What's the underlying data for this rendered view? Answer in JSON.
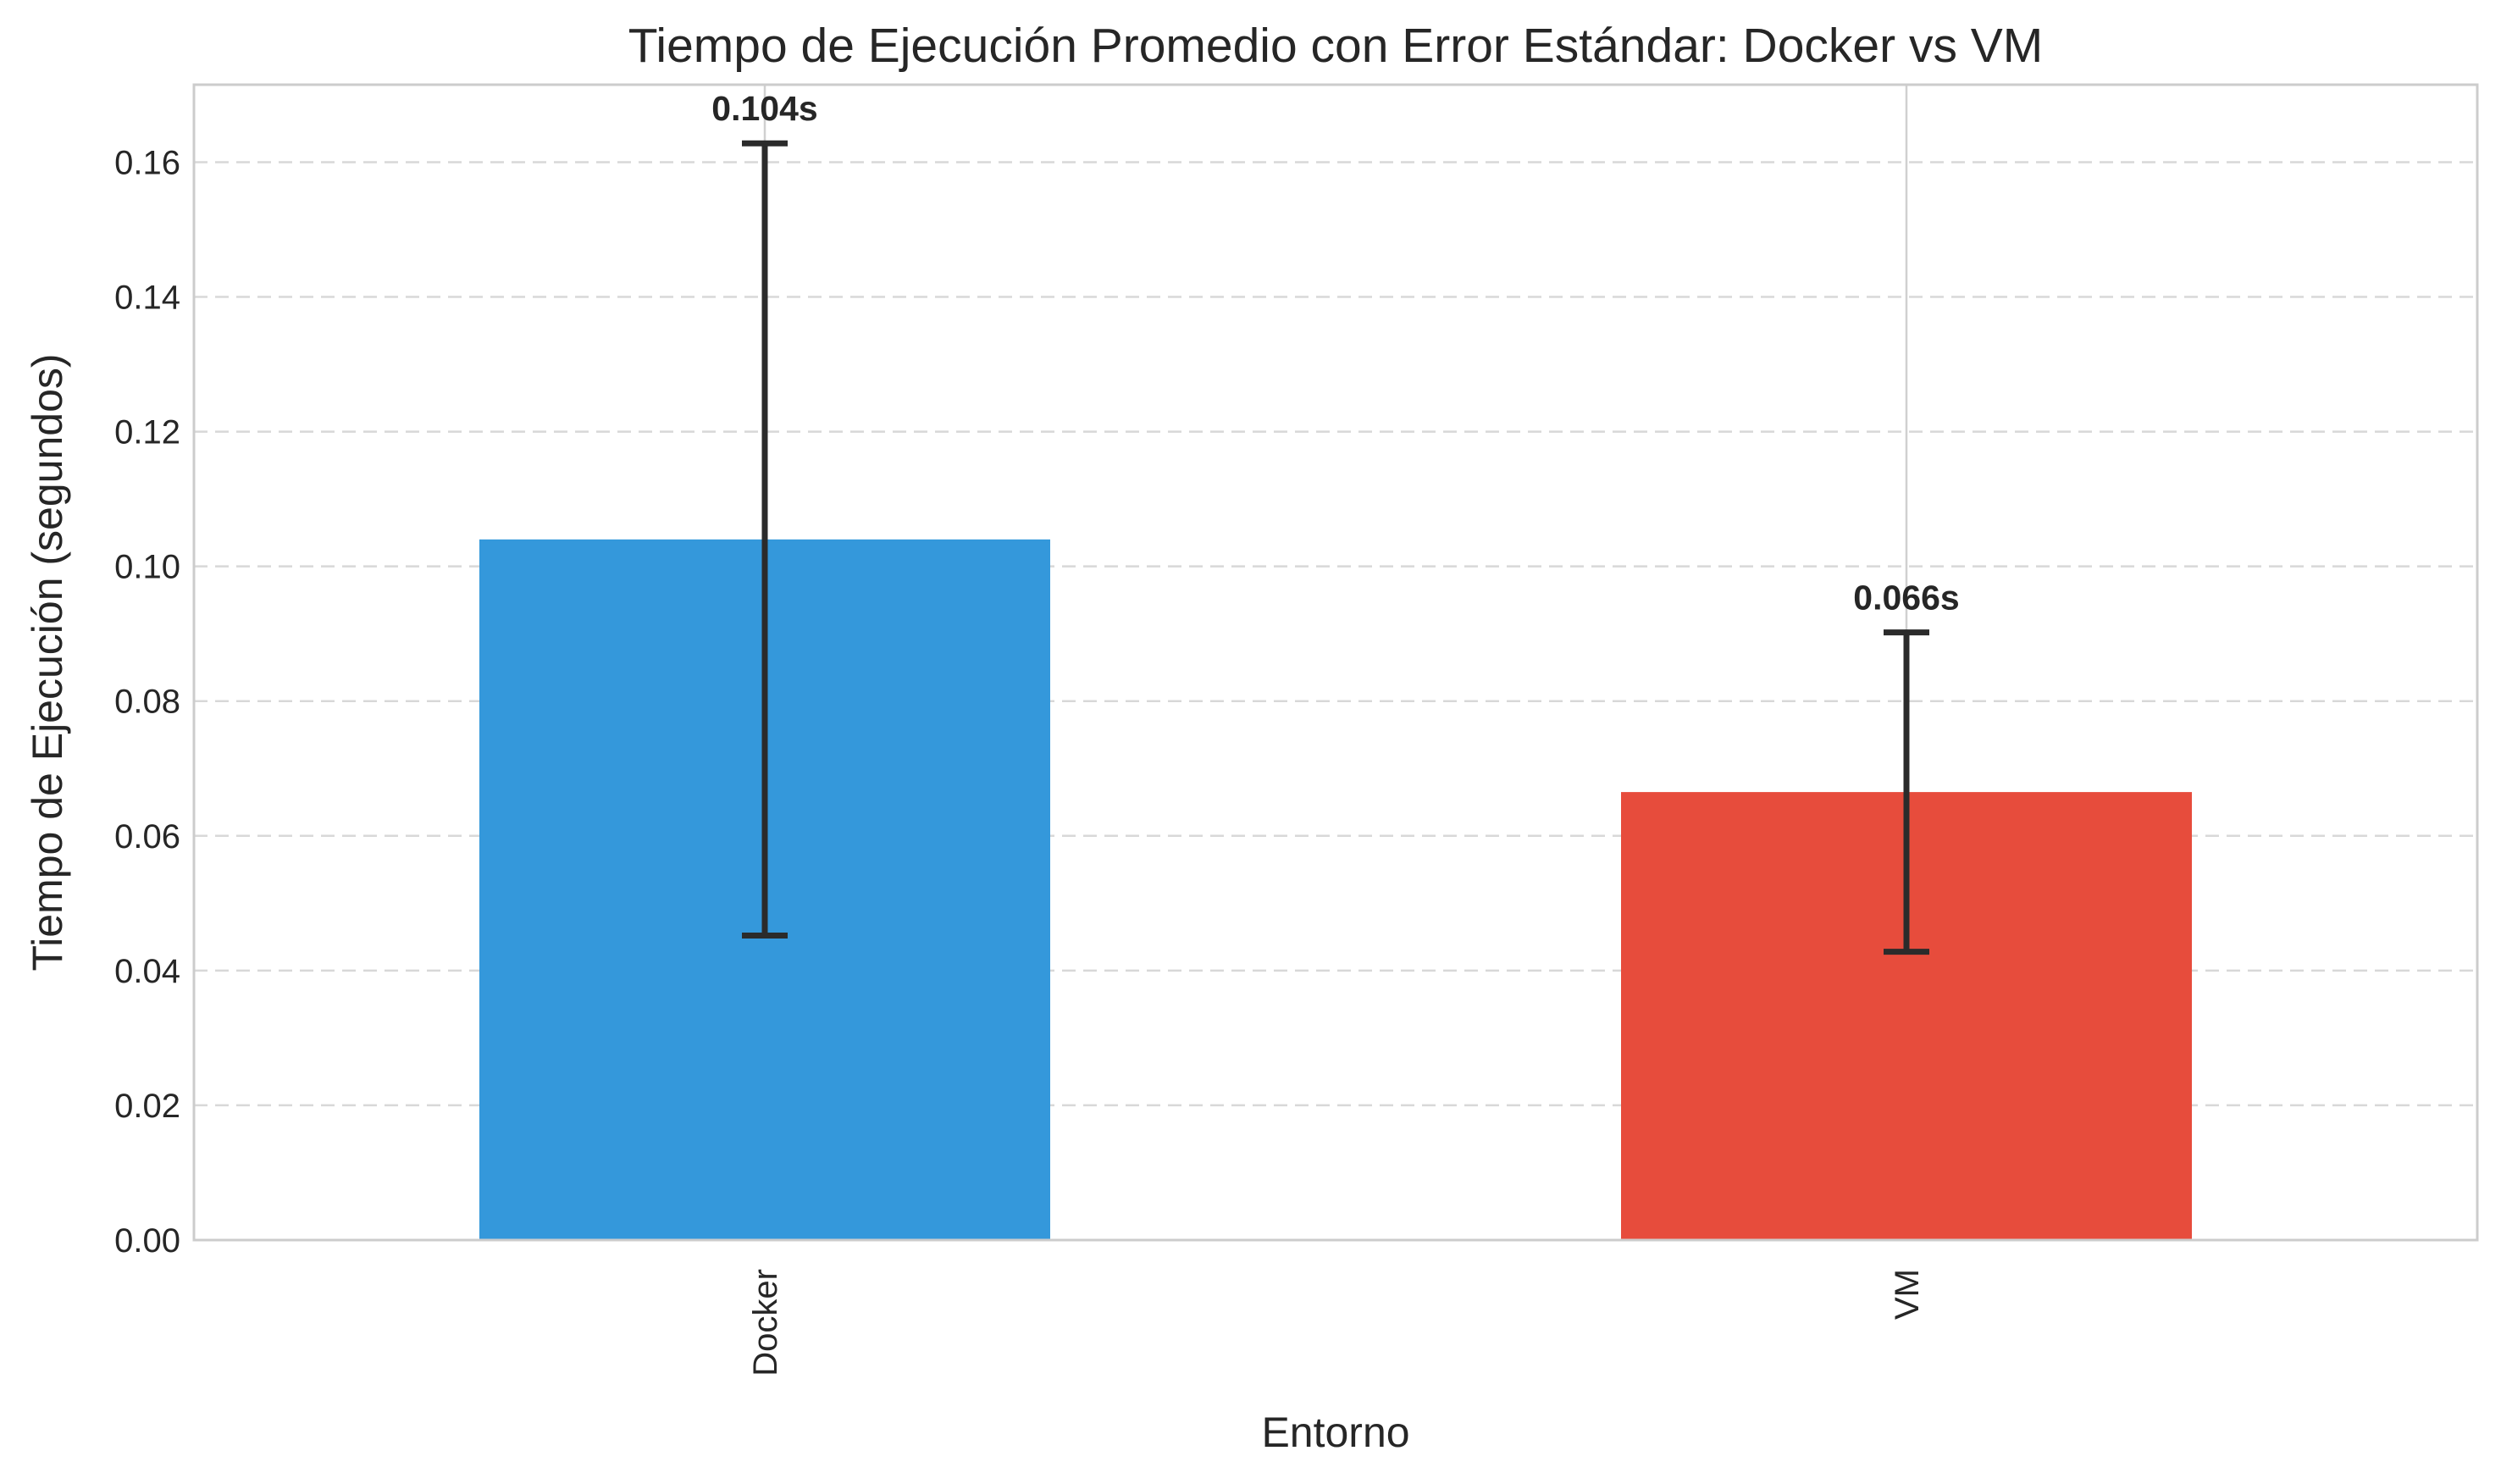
{
  "chart_data": {
    "type": "bar",
    "title": "Tiempo de Ejecución Promedio con Error Estándar: Docker vs VM",
    "xlabel": "Entorno",
    "ylabel": "Tiempo de Ejecución (segundos)",
    "categories": [
      "Docker",
      "VM"
    ],
    "values": [
      0.104,
      0.0665
    ],
    "errors": [
      0.0588,
      0.0237
    ],
    "value_labels": [
      "0.104s",
      "0.066s"
    ],
    "colors": [
      "#3498db",
      "#e74c3c"
    ],
    "ylim": [
      0,
      0.1715
    ],
    "yticks": [
      0.0,
      0.02,
      0.04,
      0.06,
      0.08,
      0.1,
      0.12,
      0.14,
      0.16
    ],
    "ytick_labels": [
      "0.00",
      "0.02",
      "0.04",
      "0.06",
      "0.08",
      "0.10",
      "0.12",
      "0.14",
      "0.16"
    ],
    "grid": true,
    "legend": "none"
  }
}
